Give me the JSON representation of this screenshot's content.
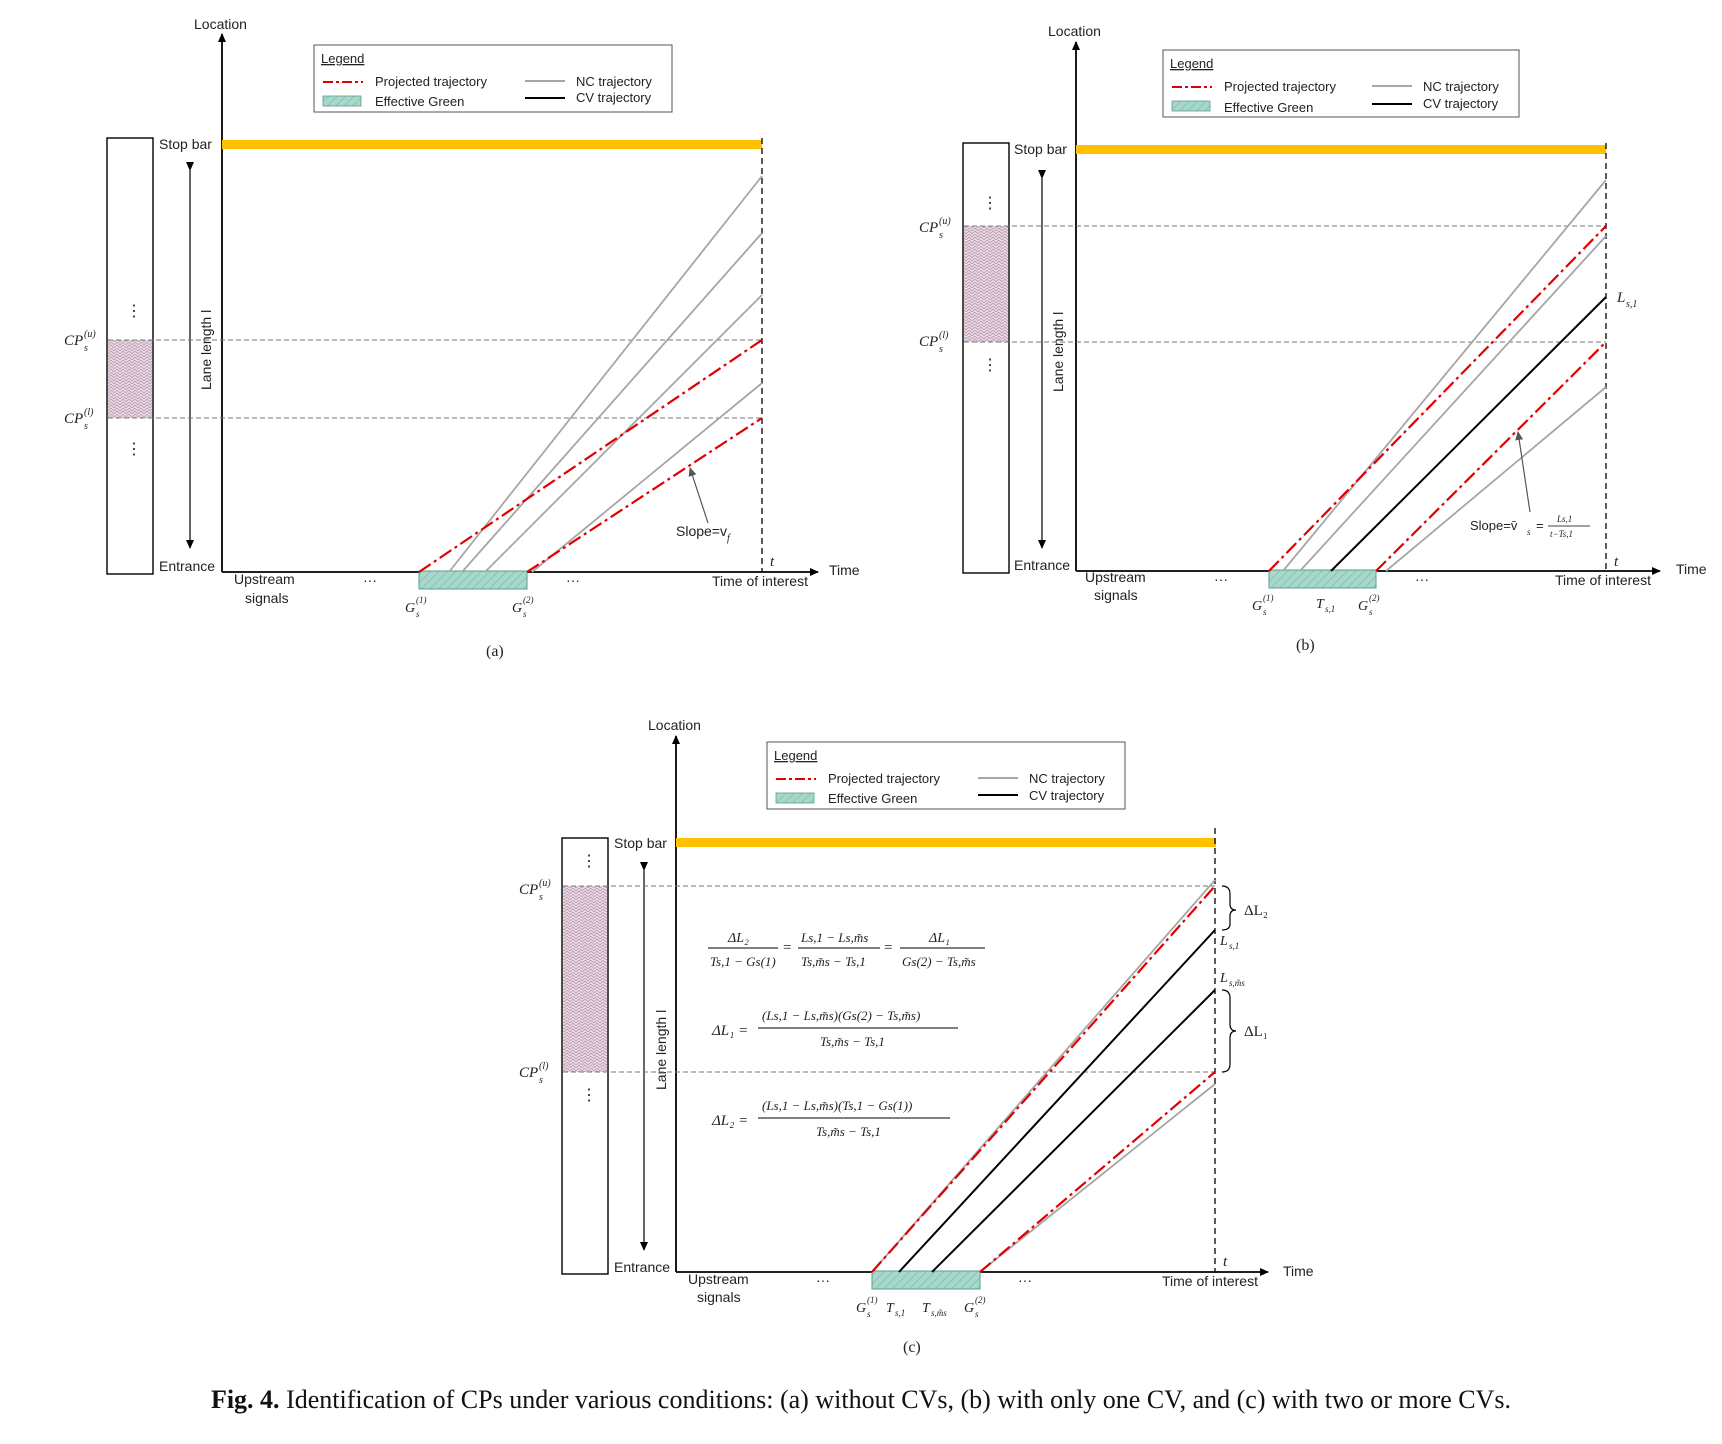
{
  "legend": {
    "title": "Legend",
    "projected": "Projected trajectory",
    "effective_green": "Effective Green",
    "nc": "NC trajectory",
    "cv": "CV trajectory"
  },
  "axis": {
    "location": "Location",
    "time": "Time",
    "stop_bar": "Stop bar",
    "entrance": "Entrance",
    "lane_length": "Lane length l",
    "upstream_1": "Upstream",
    "upstream_2": "signals",
    "time_of_interest": "Time of interest",
    "t": "t",
    "dots": "···",
    "vdots": "⋮"
  },
  "symbols": {
    "cp_u": "CP",
    "cp_u_sub": "s",
    "cp_u_sup": "(u)",
    "cp_l_sup": "(l)",
    "g1": "G",
    "g1_sup": "(1)",
    "g2_sup": "(2)",
    "ts1": "T",
    "ts1_sub": "s,1",
    "tsm_sub": "s,m̃s",
    "ls1": "L",
    "ls1_sub": "s,1",
    "lsm_sub": "s,m̃s",
    "dl1": "ΔL₁",
    "dl2": "ΔL₂"
  },
  "annotations": {
    "slope_a": "Slope=v",
    "slope_a_sub": "f",
    "slope_b": "Slope=v̄",
    "slope_b_sub": "s",
    "slope_b_frac_num": "Ls,1",
    "slope_b_frac_den": "t−Ts,1"
  },
  "equations": {
    "eq1_l1": "ΔL₂",
    "eq1_l2": "Ts,1 − Gs(1)",
    "eq1_m1": "Ls,1 − Ls,m̃s",
    "eq1_m2": "Ts,m̃s − Ts,1",
    "eq1_r1": "ΔL₁",
    "eq1_r2": "Gs(2) − Ts,m̃s",
    "eq2_lhs": "ΔL₁ =",
    "eq2_num": "(Ls,1 − Ls,m̃s)(Gs(2) − Ts,m̃s)",
    "eq2_den": "Ts,m̃s − Ts,1",
    "eq3_lhs": "ΔL₂ =",
    "eq3_num": "(Ls,1 − Ls,m̃s)(Ts,1 − Gs(1))",
    "eq3_den": "Ts,m̃s − Ts,1"
  },
  "panels": {
    "a": "(a)",
    "b": "(b)",
    "c": "(c)"
  },
  "caption": {
    "label": "Fig. 4.",
    "text": " Identification of CPs under various conditions: (a) without CVs, (b) with only one CV, and (c) with two or more CVs."
  },
  "colors": {
    "stop_bar": "#FFC000",
    "projected": "#E00000",
    "nc": "#A6A6A6",
    "cv": "#000000",
    "green_fill": "#A8D8CC",
    "green_stroke": "#5A9E8C",
    "cp_fill": "#E6D3DF"
  }
}
